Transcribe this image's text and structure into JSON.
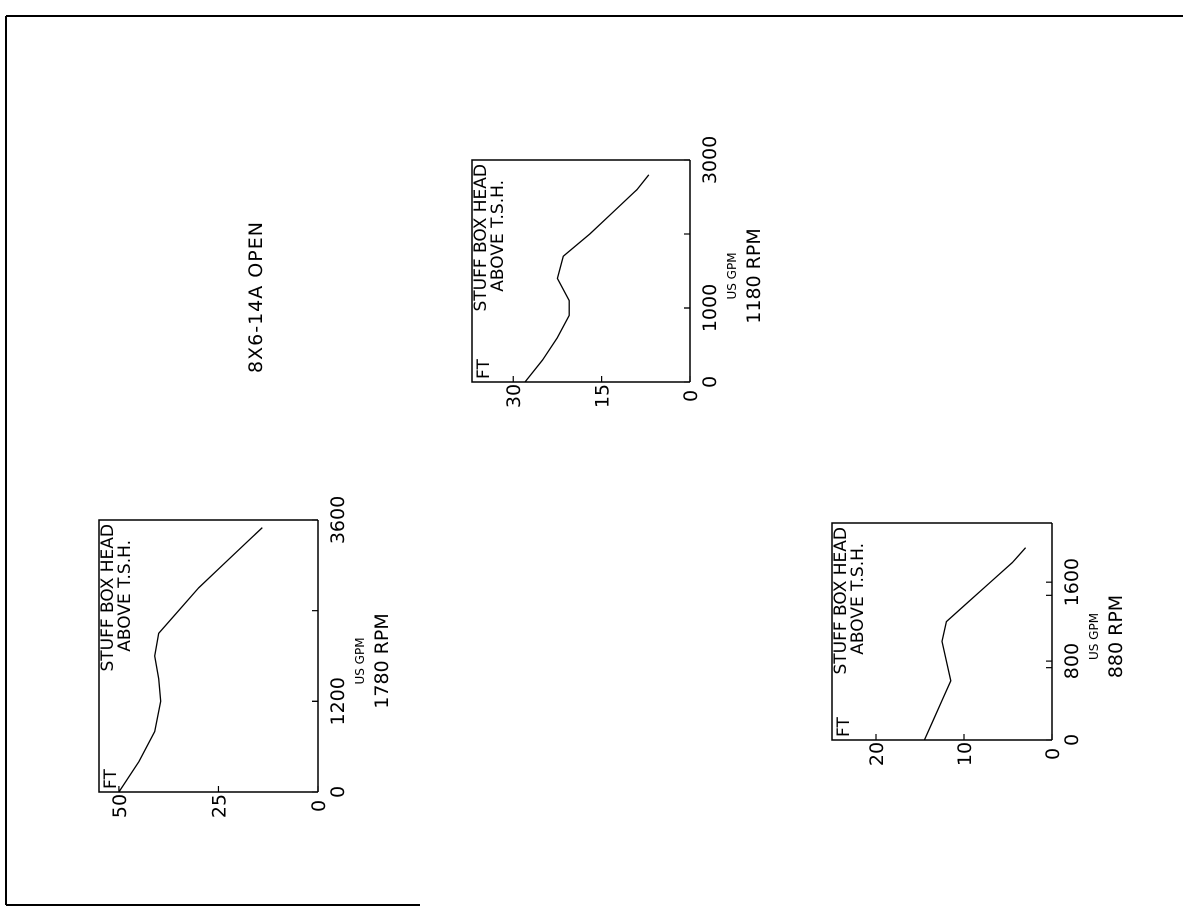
{
  "page": {
    "title": "8X6-14A OPEN"
  },
  "colors": {
    "ink": "#000000",
    "paper": "#ffffff"
  },
  "chart_data": [
    {
      "type": "line",
      "speed": "1780 RPM",
      "box_label": [
        "STUFF BOX HEAD",
        "ABOVE T.S.H."
      ],
      "ylabel": "FT",
      "xlabel": "US GPM",
      "x_ticks": [
        "0",
        "1200",
        "3600"
      ],
      "y_ticks": [
        "50",
        "25",
        "0"
      ],
      "xlim": [
        0,
        3600
      ],
      "ylim": [
        0,
        55
      ],
      "x": [
        0,
        400,
        800,
        1200,
        1500,
        1800,
        2100,
        2400,
        2700,
        3000,
        3300,
        3500
      ],
      "y": [
        50,
        45,
        41,
        39.5,
        40,
        41,
        40,
        35,
        30,
        24,
        18,
        14
      ]
    },
    {
      "type": "line",
      "speed": "1180 RPM",
      "box_label": [
        "STUFF BOX HEAD",
        "ABOVE T.S.H."
      ],
      "ylabel": "FT",
      "xlabel": "US GPM",
      "x_ticks": [
        "0",
        "1000",
        "3000"
      ],
      "y_ticks": [
        "30",
        "15",
        "0"
      ],
      "xlim": [
        0,
        3000
      ],
      "ylim": [
        0,
        37
      ],
      "x": [
        0,
        300,
        600,
        900,
        1100,
        1400,
        1700,
        2000,
        2300,
        2600,
        2800
      ],
      "y": [
        28,
        25,
        22.5,
        20.5,
        20.5,
        22.5,
        21.5,
        17,
        13,
        9,
        7
      ]
    },
    {
      "type": "line",
      "speed": "880 RPM",
      "box_label": [
        "STUFF BOX HEAD",
        "ABOVE T.S.H."
      ],
      "ylabel": "FT",
      "xlabel": "US GPM",
      "x_ticks": [
        "0",
        "800",
        "1600"
      ],
      "y_ticks": [
        "20",
        "10",
        "0"
      ],
      "xlim": [
        0,
        2200
      ],
      "ylim": [
        0,
        25
      ],
      "x": [
        0,
        200,
        400,
        600,
        800,
        1000,
        1200,
        1400,
        1600,
        1800,
        1950
      ],
      "y": [
        14.5,
        13.5,
        12.5,
        11.5,
        12,
        12.5,
        12,
        9.5,
        7,
        4.5,
        3
      ]
    }
  ]
}
